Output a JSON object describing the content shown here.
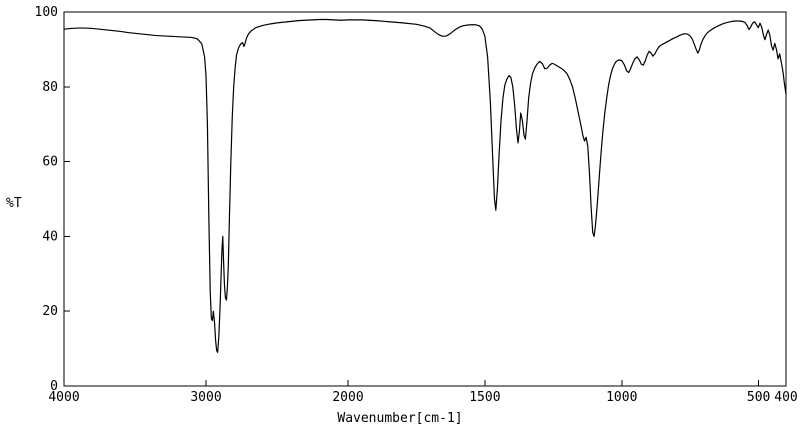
{
  "figure": {
    "background": "#ffffff",
    "frame_color": "#000000"
  },
  "chart_data": {
    "type": "line",
    "title": "",
    "xlabel": "Wavenumber[cm-1]",
    "ylabel": "%T",
    "x_axis": {
      "max": 4000,
      "min": 400,
      "reversed": true,
      "ticks": [
        4000,
        3000,
        2000,
        1500,
        1000,
        500,
        400
      ],
      "scale_break_at": 2000,
      "note": "segmented abscissa: 4000-2000 compressed, 2000-400 expanded (typical IR format)"
    },
    "y_axis": {
      "min": 0,
      "max": 100,
      "ticks": [
        0,
        20,
        40,
        60,
        80,
        100
      ]
    },
    "grid": false,
    "legend": null,
    "line_color": "#000000",
    "series": [
      {
        "name": "IR transmittance spectrum",
        "points": [
          [
            4000,
            95.4
          ],
          [
            3950,
            95.6
          ],
          [
            3900,
            95.7
          ],
          [
            3850,
            95.7
          ],
          [
            3800,
            95.6
          ],
          [
            3750,
            95.4
          ],
          [
            3700,
            95.2
          ],
          [
            3650,
            95.0
          ],
          [
            3600,
            94.8
          ],
          [
            3550,
            94.5
          ],
          [
            3500,
            94.3
          ],
          [
            3450,
            94.1
          ],
          [
            3400,
            93.9
          ],
          [
            3350,
            93.7
          ],
          [
            3300,
            93.6
          ],
          [
            3250,
            93.5
          ],
          [
            3200,
            93.4
          ],
          [
            3150,
            93.3
          ],
          [
            3100,
            93.2
          ],
          [
            3060,
            92.8
          ],
          [
            3030,
            91.5
          ],
          [
            3010,
            88
          ],
          [
            3000,
            83
          ],
          [
            2990,
            70
          ],
          [
            2980,
            45
          ],
          [
            2970,
            25
          ],
          [
            2962,
            18
          ],
          [
            2955,
            17.5
          ],
          [
            2948,
            20
          ],
          [
            2940,
            17
          ],
          [
            2932,
            12
          ],
          [
            2925,
            9.5
          ],
          [
            2918,
            9
          ],
          [
            2910,
            13
          ],
          [
            2902,
            20
          ],
          [
            2895,
            28
          ],
          [
            2888,
            36
          ],
          [
            2882,
            40
          ],
          [
            2876,
            33
          ],
          [
            2870,
            27
          ],
          [
            2863,
            23.5
          ],
          [
            2856,
            23
          ],
          [
            2850,
            26
          ],
          [
            2843,
            32
          ],
          [
            2835,
            45
          ],
          [
            2825,
            60
          ],
          [
            2815,
            72
          ],
          [
            2805,
            80
          ],
          [
            2795,
            85
          ],
          [
            2785,
            88.5
          ],
          [
            2770,
            90.5
          ],
          [
            2755,
            91.5
          ],
          [
            2742,
            91.8
          ],
          [
            2733,
            90.8
          ],
          [
            2726,
            91.5
          ],
          [
            2715,
            93
          ],
          [
            2700,
            94.2
          ],
          [
            2680,
            95
          ],
          [
            2650,
            95.8
          ],
          [
            2600,
            96.4
          ],
          [
            2550,
            96.8
          ],
          [
            2500,
            97.1
          ],
          [
            2450,
            97.3
          ],
          [
            2400,
            97.5
          ],
          [
            2350,
            97.7
          ],
          [
            2300,
            97.8
          ],
          [
            2250,
            97.9
          ],
          [
            2200,
            98
          ],
          [
            2150,
            98
          ],
          [
            2100,
            97.9
          ],
          [
            2050,
            97.8
          ],
          [
            2000,
            97.9
          ],
          [
            1950,
            97.9
          ],
          [
            1900,
            97.7
          ],
          [
            1850,
            97.4
          ],
          [
            1800,
            97.1
          ],
          [
            1750,
            96.7
          ],
          [
            1720,
            96.2
          ],
          [
            1700,
            95.7
          ],
          [
            1685,
            94.8
          ],
          [
            1670,
            94
          ],
          [
            1655,
            93.5
          ],
          [
            1640,
            93.6
          ],
          [
            1625,
            94.3
          ],
          [
            1610,
            95.2
          ],
          [
            1595,
            95.9
          ],
          [
            1580,
            96.3
          ],
          [
            1565,
            96.5
          ],
          [
            1550,
            96.6
          ],
          [
            1535,
            96.6
          ],
          [
            1520,
            96.3
          ],
          [
            1510,
            95.5
          ],
          [
            1500,
            93.5
          ],
          [
            1490,
            88
          ],
          [
            1480,
            76
          ],
          [
            1472,
            62
          ],
          [
            1465,
            50
          ],
          [
            1460,
            47
          ],
          [
            1454,
            53
          ],
          [
            1448,
            62
          ],
          [
            1441,
            71
          ],
          [
            1434,
            77
          ],
          [
            1427,
            80.5
          ],
          [
            1420,
            82
          ],
          [
            1412,
            83
          ],
          [
            1405,
            82.5
          ],
          [
            1398,
            80
          ],
          [
            1391,
            75
          ],
          [
            1385,
            69
          ],
          [
            1379,
            65
          ],
          [
            1374,
            68
          ],
          [
            1369,
            73
          ],
          [
            1363,
            71
          ],
          [
            1357,
            67
          ],
          [
            1352,
            66
          ],
          [
            1346,
            71
          ],
          [
            1340,
            77
          ],
          [
            1333,
            81
          ],
          [
            1326,
            83.5
          ],
          [
            1318,
            85
          ],
          [
            1310,
            86
          ],
          [
            1300,
            86.8
          ],
          [
            1290,
            86.2
          ],
          [
            1281,
            84.8
          ],
          [
            1272,
            85
          ],
          [
            1263,
            85.8
          ],
          [
            1254,
            86.3
          ],
          [
            1245,
            86
          ],
          [
            1236,
            85.6
          ],
          [
            1227,
            85.2
          ],
          [
            1218,
            84.8
          ],
          [
            1209,
            84.2
          ],
          [
            1200,
            83.5
          ],
          [
            1190,
            82
          ],
          [
            1180,
            80
          ],
          [
            1170,
            77
          ],
          [
            1160,
            73.5
          ],
          [
            1150,
            70
          ],
          [
            1142,
            67
          ],
          [
            1136,
            65.5
          ],
          [
            1130,
            66.5
          ],
          [
            1124,
            64
          ],
          [
            1118,
            57
          ],
          [
            1112,
            48
          ],
          [
            1106,
            41
          ],
          [
            1101,
            40
          ],
          [
            1096,
            43
          ],
          [
            1090,
            48
          ],
          [
            1083,
            55
          ],
          [
            1076,
            62
          ],
          [
            1069,
            68
          ],
          [
            1062,
            73
          ],
          [
            1055,
            77
          ],
          [
            1048,
            80.5
          ],
          [
            1041,
            83
          ],
          [
            1034,
            84.8
          ],
          [
            1027,
            86
          ],
          [
            1020,
            86.8
          ],
          [
            1010,
            87.2
          ],
          [
            1000,
            87
          ],
          [
            990,
            85.8
          ],
          [
            982,
            84.3
          ],
          [
            975,
            83.8
          ],
          [
            968,
            84.8
          ],
          [
            960,
            86.3
          ],
          [
            952,
            87.5
          ],
          [
            944,
            88
          ],
          [
            936,
            87.2
          ],
          [
            928,
            86
          ],
          [
            921,
            85.8
          ],
          [
            914,
            87
          ],
          [
            907,
            88.5
          ],
          [
            900,
            89.5
          ],
          [
            893,
            89
          ],
          [
            886,
            88.2
          ],
          [
            879,
            88.8
          ],
          [
            872,
            89.8
          ],
          [
            865,
            90.6
          ],
          [
            858,
            91.1
          ],
          [
            850,
            91.4
          ],
          [
            840,
            91.8
          ],
          [
            830,
            92.2
          ],
          [
            820,
            92.6
          ],
          [
            810,
            93
          ],
          [
            800,
            93.3
          ],
          [
            790,
            93.7
          ],
          [
            780,
            94
          ],
          [
            770,
            94.2
          ],
          [
            760,
            94.1
          ],
          [
            750,
            93.6
          ],
          [
            742,
            92.7
          ],
          [
            735,
            91.4
          ],
          [
            728,
            90
          ],
          [
            722,
            89
          ],
          [
            717,
            89.8
          ],
          [
            711,
            91.3
          ],
          [
            704,
            92.6
          ],
          [
            696,
            93.6
          ],
          [
            688,
            94.4
          ],
          [
            678,
            95
          ],
          [
            668,
            95.5
          ],
          [
            656,
            96
          ],
          [
            644,
            96.4
          ],
          [
            632,
            96.8
          ],
          [
            620,
            97.1
          ],
          [
            608,
            97.3
          ],
          [
            596,
            97.5
          ],
          [
            584,
            97.6
          ],
          [
            572,
            97.6
          ],
          [
            560,
            97.5
          ],
          [
            550,
            97.2
          ],
          [
            542,
            96.4
          ],
          [
            535,
            95.3
          ],
          [
            529,
            96
          ],
          [
            522,
            97
          ],
          [
            515,
            97.4
          ],
          [
            508,
            96.6
          ],
          [
            501,
            95.8
          ],
          [
            495,
            97
          ],
          [
            489,
            96
          ],
          [
            483,
            94
          ],
          [
            477,
            92.6
          ],
          [
            471,
            94
          ],
          [
            465,
            95.2
          ],
          [
            459,
            93.8
          ],
          [
            453,
            91
          ],
          [
            447,
            89.8
          ],
          [
            441,
            91.6
          ],
          [
            435,
            90
          ],
          [
            429,
            87.5
          ],
          [
            423,
            88.8
          ],
          [
            417,
            86.5
          ],
          [
            411,
            84
          ],
          [
            406,
            81
          ],
          [
            402,
            79
          ],
          [
            400,
            78
          ]
        ]
      }
    ]
  }
}
